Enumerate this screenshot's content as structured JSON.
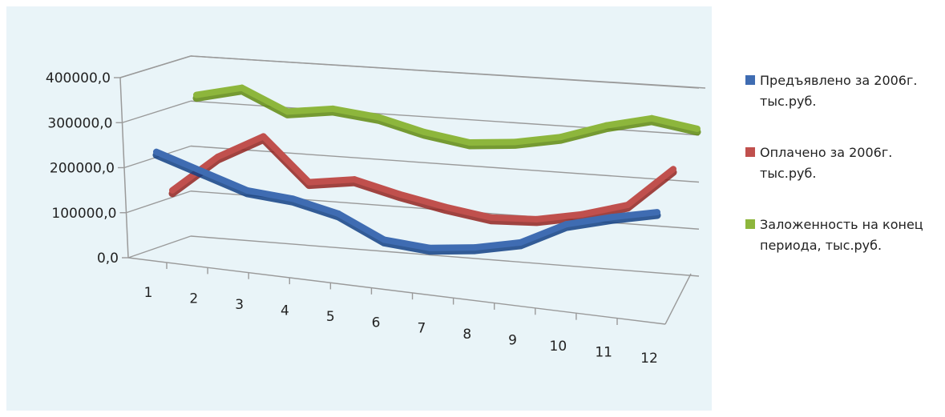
{
  "chart_data": {
    "type": "line",
    "title": "",
    "xlabel": "",
    "ylabel": "",
    "categories": [
      "1",
      "2",
      "3",
      "4",
      "5",
      "6",
      "7",
      "8",
      "9",
      "10",
      "11",
      "12"
    ],
    "y_ticks": [
      "0,0",
      "100000,0",
      "200000,0",
      "300000,0",
      "400000,0"
    ],
    "ylim": [
      0,
      400000
    ],
    "legend_position": "right",
    "series": [
      {
        "name": "Предъявлено за 2006г. тыс.руб.",
        "color": "#3f6cb2",
        "values": [
          240000,
          200000,
          160000,
          145000,
          115000,
          60000,
          45000,
          50000,
          65000,
          110000,
          130000,
          145000
        ]
      },
      {
        "name": "Оплачено за 2006г. тыс.руб.",
        "color": "#c0504d",
        "values": [
          120000,
          200000,
          250000,
          150000,
          160000,
          130000,
          105000,
          85000,
          85000,
          100000,
          125000,
          210000
        ]
      },
      {
        "name": "Заложенность на конец периода, тыс.руб.",
        "color": "#8db63c",
        "values": [
          300000,
          320000,
          270000,
          280000,
          265000,
          235000,
          215000,
          220000,
          235000,
          265000,
          285000,
          265000
        ]
      }
    ]
  },
  "legend": {
    "items": [
      {
        "label": "Предъявлено за 2006г.\nтыс.руб.",
        "color": "#3f6cb2"
      },
      {
        "label": "Оплачено за 2006г.\nтыс.руб.",
        "color": "#c0504d"
      },
      {
        "label": "Заложенность на конец\nпериода, тыс.руб.",
        "color": "#8db63c"
      }
    ]
  }
}
